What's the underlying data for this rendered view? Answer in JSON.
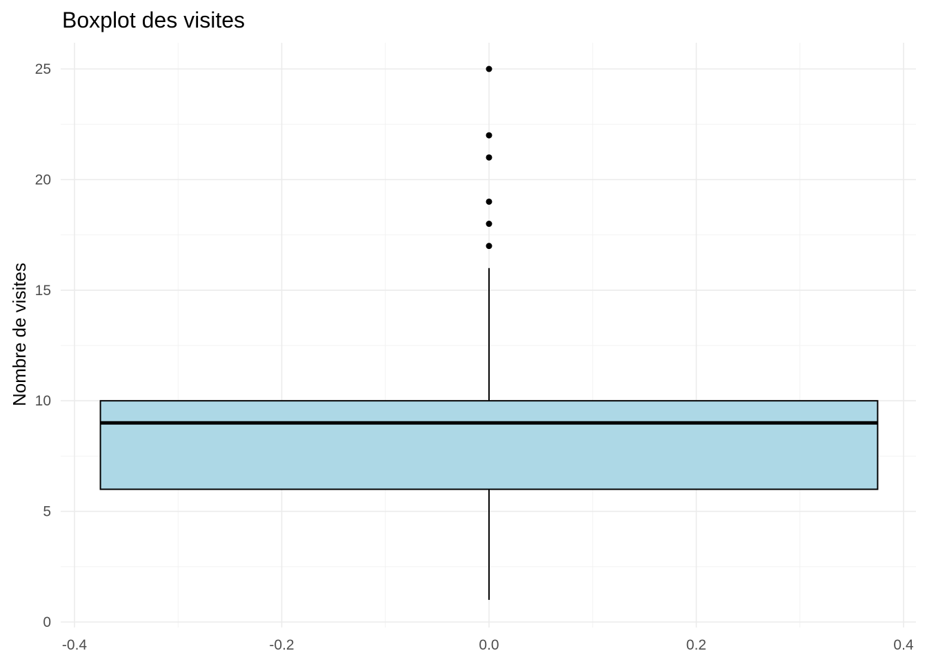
{
  "chart_data": {
    "type": "boxplot",
    "title": "Boxplot des visites",
    "xlabel": "",
    "ylabel": "Nombre de visites",
    "xlim": [
      -0.4,
      0.4
    ],
    "ylim": [
      0,
      25
    ],
    "x_ticks": [
      "-0.4",
      "-0.2",
      "0.0",
      "0.2",
      "0.4"
    ],
    "x_tick_values": [
      -0.4,
      -0.2,
      0.0,
      0.2,
      0.4
    ],
    "y_ticks": [
      "0",
      "5",
      "10",
      "15",
      "20",
      "25"
    ],
    "y_tick_values": [
      0,
      5,
      10,
      15,
      20,
      25
    ],
    "grid": true,
    "box": {
      "x_center": 0.0,
      "x_min": -0.375,
      "x_max": 0.375,
      "whisker_low": 1,
      "q1": 6,
      "median": 9,
      "q3": 10,
      "whisker_high": 16,
      "outliers": [
        17,
        18,
        19,
        21,
        22,
        25
      ],
      "fill": "#add8e6",
      "stroke": "#000000"
    }
  }
}
